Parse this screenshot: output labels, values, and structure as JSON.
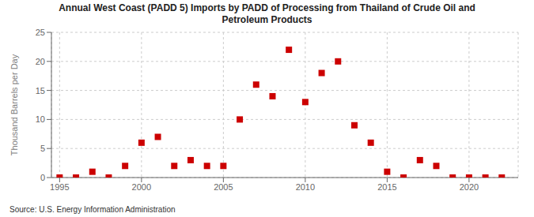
{
  "chart_data": {
    "type": "scatter",
    "title": "Annual West Coast (PADD 5) Imports by PADD of Processing from Thailand of Crude Oil and\nPetroleum Products",
    "ylabel": "Thousand Barrels per Day",
    "annotations": [
      "Source: U.S. Energy Information Administration"
    ],
    "x": [
      1995,
      1996,
      1997,
      1998,
      1999,
      2000,
      2001,
      2002,
      2003,
      2004,
      2005,
      2006,
      2007,
      2008,
      2009,
      2010,
      2011,
      2012,
      2013,
      2014,
      2015,
      2016,
      2017,
      2018,
      2019,
      2020,
      2021,
      2022
    ],
    "values": [
      0,
      0,
      1,
      0,
      2,
      6,
      7,
      2,
      3,
      2,
      2,
      10,
      16,
      14,
      22,
      13,
      18,
      20,
      9,
      6,
      1,
      0,
      3,
      2,
      0,
      0,
      0,
      0
    ],
    "color": "#cc0000",
    "marker": "square",
    "xlim": [
      1994.5,
      2023
    ],
    "ylim": [
      0,
      25
    ],
    "xticks": [
      1995,
      2000,
      2005,
      2010,
      2015,
      2020
    ],
    "yticks": [
      0,
      5,
      10,
      15,
      20,
      25
    ],
    "grid": true
  }
}
